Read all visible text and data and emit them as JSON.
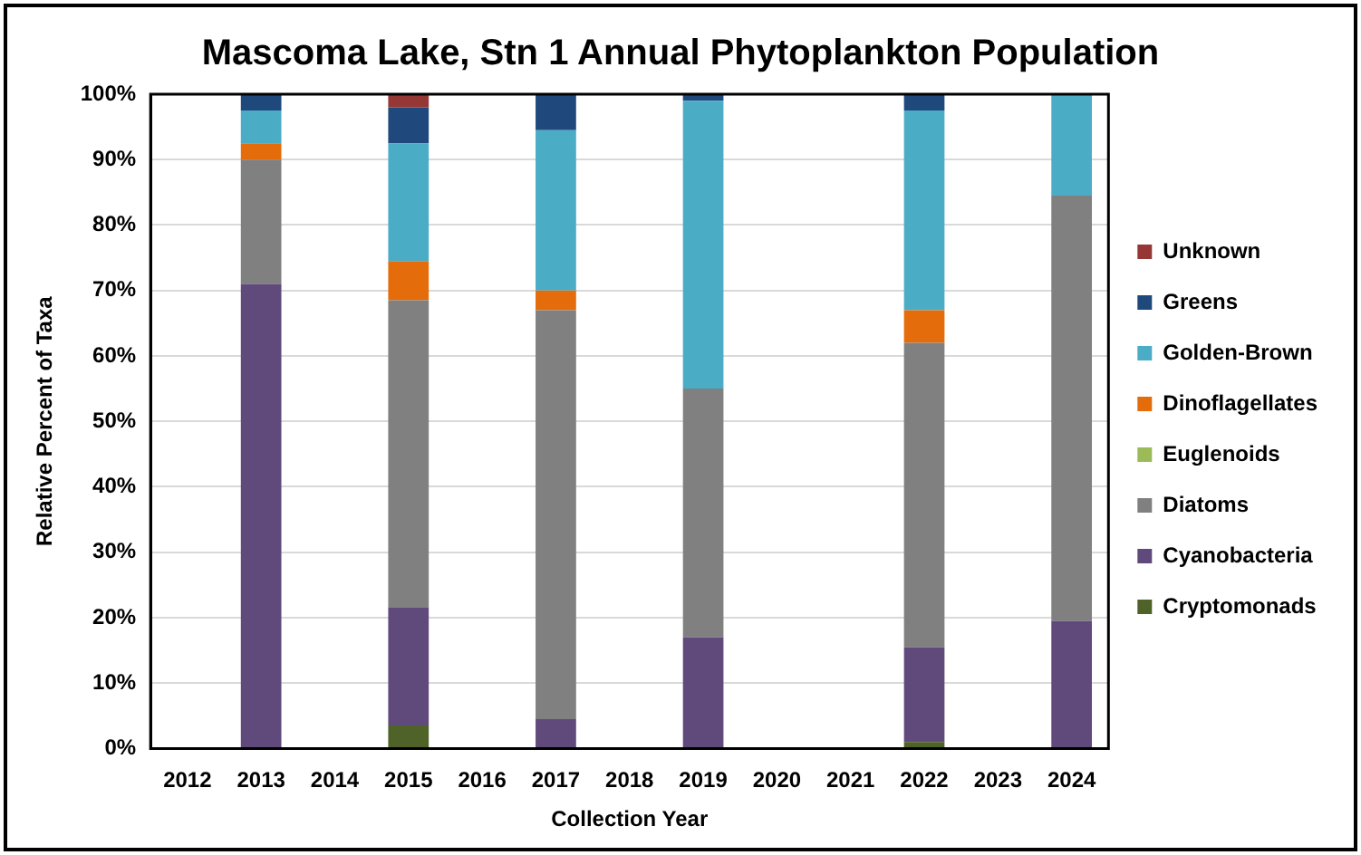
{
  "chart_data": {
    "type": "bar",
    "stacked": true,
    "title": "Mascoma Lake, Stn 1 Annual Phytoplankton Population",
    "xlabel": "Collection Year",
    "ylabel": "Relative Percent of Taxa",
    "categories": [
      "2012",
      "2013",
      "2014",
      "2015",
      "2016",
      "2017",
      "2018",
      "2019",
      "2020",
      "2021",
      "2022",
      "2023",
      "2024"
    ],
    "series": [
      {
        "name": "Cryptomonads",
        "color": "#4f6228",
        "values": [
          null,
          0,
          null,
          3.5,
          null,
          0,
          null,
          0,
          null,
          null,
          1,
          null,
          0
        ]
      },
      {
        "name": "Cyanobacteria",
        "color": "#604a7b",
        "values": [
          null,
          71,
          null,
          18,
          null,
          4.5,
          null,
          17,
          null,
          null,
          14.5,
          null,
          19.5
        ]
      },
      {
        "name": "Diatoms",
        "color": "#808080",
        "values": [
          null,
          19,
          null,
          47,
          null,
          62.5,
          null,
          38,
          null,
          null,
          46.5,
          null,
          65
        ]
      },
      {
        "name": "Euglenoids",
        "color": "#9bbb59",
        "values": [
          null,
          0,
          null,
          0,
          null,
          0,
          null,
          0,
          null,
          null,
          0,
          null,
          0
        ]
      },
      {
        "name": "Dinoflagellates",
        "color": "#e46c0a",
        "values": [
          null,
          2.5,
          null,
          6,
          null,
          3,
          null,
          0,
          null,
          null,
          5,
          null,
          0
        ]
      },
      {
        "name": "Golden-Brown",
        "color": "#4bacc6",
        "values": [
          null,
          5,
          null,
          18,
          null,
          24.5,
          null,
          44,
          null,
          null,
          30.5,
          null,
          15.5
        ]
      },
      {
        "name": "Greens",
        "color": "#1f497d",
        "values": [
          null,
          2.5,
          null,
          5.5,
          null,
          5.5,
          null,
          1,
          null,
          null,
          2.5,
          null,
          0
        ]
      },
      {
        "name": "Unknown",
        "color": "#953735",
        "values": [
          null,
          0,
          null,
          2,
          null,
          0,
          null,
          0,
          null,
          null,
          0,
          null,
          0
        ]
      }
    ],
    "ylim": [
      0,
      100
    ],
    "yticks": [
      {
        "value": 0,
        "label": "0%"
      },
      {
        "value": 10,
        "label": "10%"
      },
      {
        "value": 20,
        "label": "20%"
      },
      {
        "value": 30,
        "label": "30%"
      },
      {
        "value": 40,
        "label": "40%"
      },
      {
        "value": 50,
        "label": "50%"
      },
      {
        "value": 60,
        "label": "60%"
      },
      {
        "value": 70,
        "label": "70%"
      },
      {
        "value": 80,
        "label": "80%"
      },
      {
        "value": 90,
        "label": "90%"
      },
      {
        "value": 100,
        "label": "100%"
      }
    ],
    "grid": "y",
    "legend": "right"
  }
}
